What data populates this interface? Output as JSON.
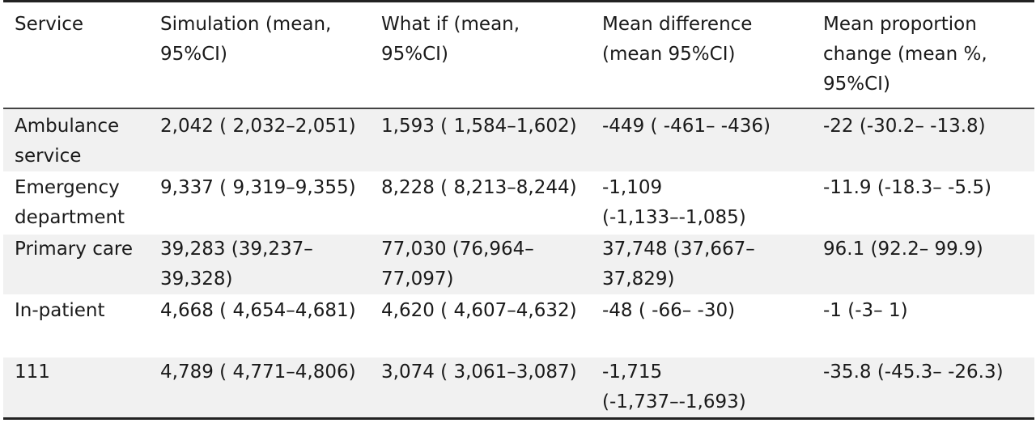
{
  "table": {
    "headers": [
      "Service",
      "Simulation (mean, 95%CI)",
      "What if (mean, 95%CI)",
      "Mean difference (mean 95%CI)",
      "Mean proportion change (mean %, 95%CI)"
    ],
    "rows": [
      [
        "Ambulance service",
        "2,042 ( 2,032–2,051)",
        "1,593 ( 1,584–1,602)",
        "-449 ( -461– -436)",
        "-22 (-30.2– -13.8)"
      ],
      [
        "Emergency department",
        "9,337 ( 9,319–9,355)",
        "8,228 ( 8,213–8,244)",
        "-1,109 (-1,133–-1,085)",
        "-11.9 (-18.3– -5.5)"
      ],
      [
        "Primary care",
        "39,283 (39,237–39,328)",
        "77,030 (76,964–77,097)",
        "37,748 (37,667–37,829)",
        "96.1 (92.2– 99.9)"
      ],
      [
        "In-patient",
        "4,668 ( 4,654–4,681)",
        "4,620 ( 4,607–4,632)",
        "-48 ( -66– -30)",
        "-1 (-3– 1)"
      ],
      [
        "111",
        "4,789 ( 4,771–4,806)",
        "3,074 ( 3,061–3,087)",
        "-1,715 (-1,737–-1,693)",
        "-35.8 (-45.3– -26.3)"
      ]
    ]
  }
}
